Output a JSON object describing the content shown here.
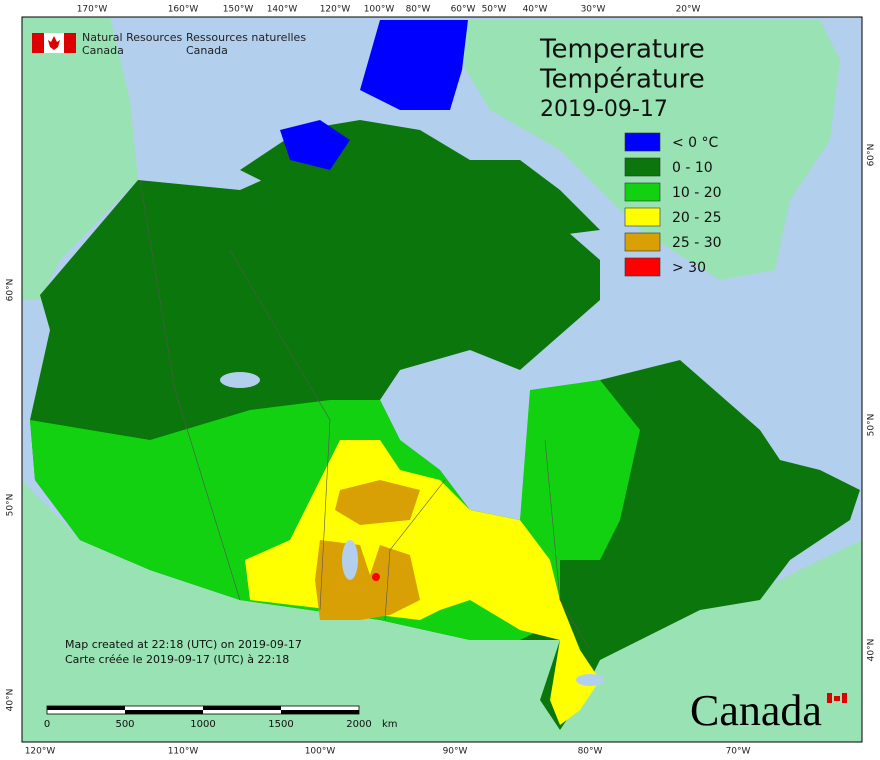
{
  "header": {
    "agency_en": [
      "Natural Resources",
      "Canada"
    ],
    "agency_fr": [
      "Ressources naturelles",
      "Canada"
    ]
  },
  "title": {
    "line1": "Temperature",
    "line2": "Température",
    "date": "2019-09-17"
  },
  "legend": [
    {
      "label": "< 0 °C",
      "color": "#0000ff"
    },
    {
      "label": "0 - 10",
      "color": "#0b760b"
    },
    {
      "label": "10 - 20",
      "color": "#11d111"
    },
    {
      "label": "20 - 25",
      "color": "#ffff00"
    },
    {
      "label": "25 - 30",
      "color": "#d9a005"
    },
    {
      "label": "> 30",
      "color": "#ff0000"
    }
  ],
  "graticule": {
    "top": [
      "170°W",
      "160°W",
      "150°W",
      "140°W",
      "120°W",
      "100°W",
      "80°W",
      "60°W",
      "50°W",
      "40°W",
      "30°W",
      "20°W"
    ],
    "bottom": [
      "120°W",
      "110°W",
      "100°W",
      "90°W",
      "80°W",
      "70°W"
    ],
    "left": [
      "60°N",
      "50°N",
      "40°N"
    ],
    "right": [
      "60°N",
      "50°N",
      "40°N"
    ]
  },
  "footer": {
    "created_en": "Map created at 22:18 (UTC) on 2019-09-17",
    "created_fr": "Carte créée le 2019-09-17 (UTC) à 22:18"
  },
  "scale": {
    "labels": [
      "0",
      "500",
      "1000",
      "1500",
      "2000"
    ],
    "unit": "km"
  },
  "wordmark": "Canada"
}
